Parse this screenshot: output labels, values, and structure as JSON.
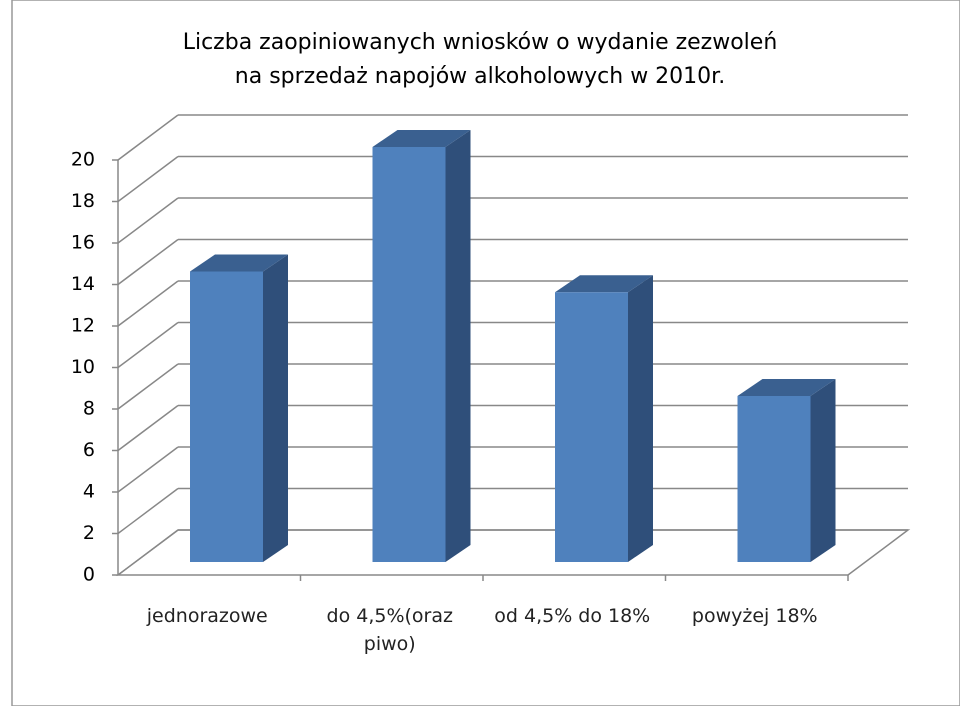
{
  "chart_data": {
    "type": "bar3d",
    "title": "Liczba zaopiniowanych wniosków o wydanie zezwoleń\nna sprzedaż napojów alkoholowych w 2010r.",
    "categories": [
      "jednorazowe",
      "do 4,5%(oraz piwo)",
      "od 4,5% do 18%",
      "powyżej 18%"
    ],
    "values": [
      14,
      20,
      13,
      8
    ],
    "color": "#4f81bd",
    "ylim": [
      0,
      20
    ],
    "yticks": [
      0,
      2,
      4,
      6,
      8,
      10,
      12,
      14,
      16,
      18,
      20
    ],
    "grid": true
  }
}
